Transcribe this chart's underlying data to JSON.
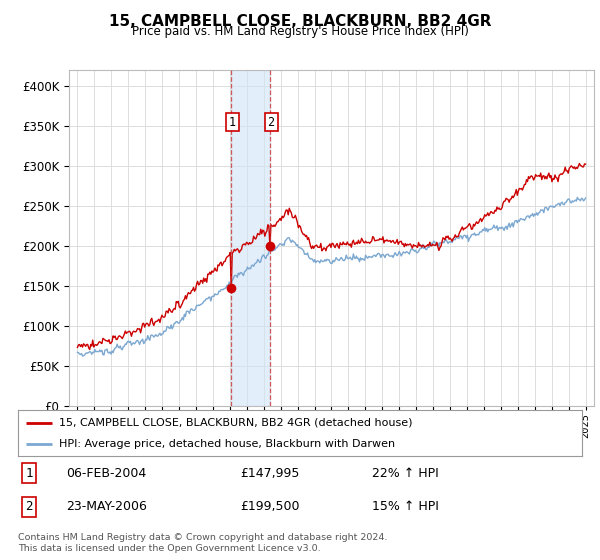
{
  "title": "15, CAMPBELL CLOSE, BLACKBURN, BB2 4GR",
  "subtitle": "Price paid vs. HM Land Registry's House Price Index (HPI)",
  "hpi_line_color": "#7ba7d0",
  "price_line_color": "#cc0000",
  "transaction1_date_num": 2004.09,
  "transaction2_date_num": 2006.38,
  "transaction1_price": 147995,
  "transaction2_price": 199500,
  "transaction1_label": "1",
  "transaction2_label": "2",
  "transaction1_date_str": "06-FEB-2004",
  "transaction2_date_str": "23-MAY-2006",
  "transaction1_hpi_pct": "22% ↑ HPI",
  "transaction2_hpi_pct": "15% ↑ HPI",
  "legend_line1": "15, CAMPBELL CLOSE, BLACKBURN, BB2 4GR (detached house)",
  "legend_line2": "HPI: Average price, detached house, Blackburn with Darwen",
  "footnote1": "Contains HM Land Registry data © Crown copyright and database right 2024.",
  "footnote2": "This data is licensed under the Open Government Licence v3.0.",
  "ylim_min": 0,
  "ylim_max": 420000,
  "xlim_min": 1994.5,
  "xlim_max": 2025.5,
  "background_color": "#ffffff",
  "grid_color": "#dddddd",
  "shade_color": "#d0e4f5",
  "shade_alpha": 0.6
}
